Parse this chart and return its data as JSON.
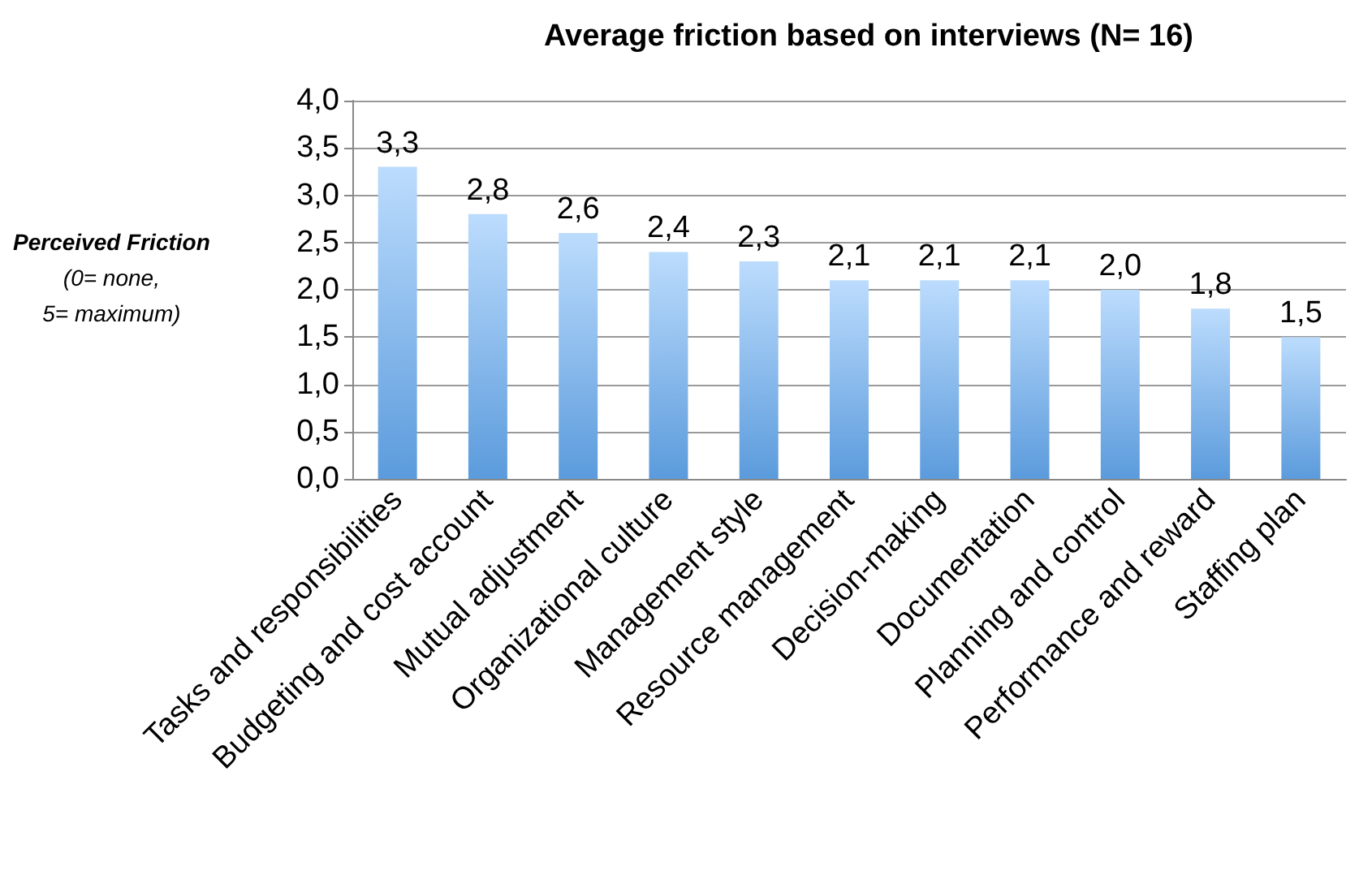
{
  "chart_data": {
    "type": "bar",
    "title": "Average friction based on interviews (N= 16)",
    "ylabel": "Perceived Friction\n(0= none,\n5= maximum)",
    "categories": [
      "Tasks and responsibilities",
      "Budgeting and cost account",
      "Mutual adjustment",
      "Organizational culture",
      "Management style",
      "Resource management",
      "Decision-making",
      "Documentation",
      "Planning and control",
      "Performance and reward",
      "Staffing plan"
    ],
    "values": [
      3.3,
      2.8,
      2.6,
      2.4,
      2.3,
      2.1,
      2.1,
      2.1,
      2.0,
      1.8,
      1.5
    ],
    "value_labels": [
      "3,3",
      "2,8",
      "2,6",
      "2,4",
      "2,3",
      "2,1",
      "2,1",
      "2,1",
      "2,0",
      "1,8",
      "1,5"
    ],
    "color": "#5b9bdc",
    "grid": "y",
    "ylim": [
      0,
      4
    ],
    "yticks": [
      {
        "value": 0,
        "label": "0,0"
      },
      {
        "value": 0.5,
        "label": "0,5"
      },
      {
        "value": 1,
        "label": "1,0"
      },
      {
        "value": 1.5,
        "label": "1,5"
      },
      {
        "value": 2,
        "label": "2,0"
      },
      {
        "value": 2.5,
        "label": "2,5"
      },
      {
        "value": 3,
        "label": "3,0"
      },
      {
        "value": 3.5,
        "label": "3,5"
      },
      {
        "value": 4,
        "label": "4,0"
      }
    ]
  }
}
